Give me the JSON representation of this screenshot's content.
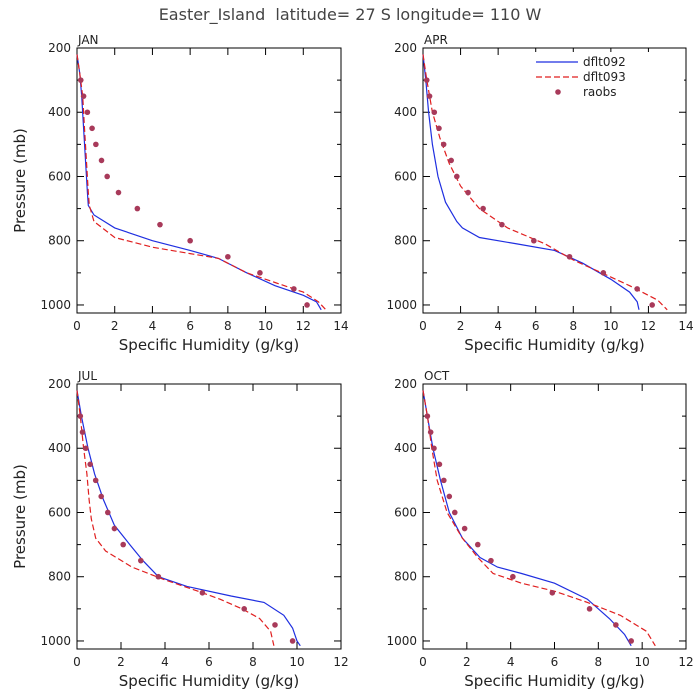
{
  "figure_title": "Easter_Island  latitude= 27 S longitude= 110 W",
  "legend": {
    "entries": [
      {
        "label": "dflt092",
        "color": "#1f2fe0",
        "style": "solid"
      },
      {
        "label": "dflt093",
        "color": "#e01f1f",
        "style": "dashed"
      },
      {
        "label": "raobs",
        "color": "#a83a5a",
        "style": "dot"
      }
    ]
  },
  "chart_data": [
    {
      "type": "line",
      "title": "JAN",
      "xlabel": "Specific Humidity (g/kg)",
      "ylabel": "Pressure (mb)",
      "xlim": [
        0,
        14
      ],
      "ylim": [
        200,
        1025
      ],
      "y_inverted": true,
      "xticks": [
        "0",
        "2",
        "4",
        "6",
        "8",
        "10",
        "12",
        "14"
      ],
      "yticks": [
        "200",
        "400",
        "600",
        "800",
        "1000"
      ],
      "series": [
        {
          "name": "dflt092",
          "points": [
            [
              0,
              220
            ],
            [
              0.15,
              280
            ],
            [
              0.25,
              350
            ],
            [
              0.35,
              450
            ],
            [
              0.45,
              550
            ],
            [
              0.55,
              650
            ],
            [
              0.6,
              690
            ],
            [
              0.9,
              720
            ],
            [
              2,
              760
            ],
            [
              4,
              800
            ],
            [
              6,
              830
            ],
            [
              7.5,
              855
            ],
            [
              9,
              900
            ],
            [
              10.5,
              940
            ],
            [
              12,
              970
            ],
            [
              12.7,
              990
            ],
            [
              12.95,
              1015
            ]
          ]
        },
        {
          "name": "dflt093",
          "points": [
            [
              0,
              220
            ],
            [
              0.15,
              280
            ],
            [
              0.3,
              350
            ],
            [
              0.4,
              450
            ],
            [
              0.5,
              550
            ],
            [
              0.6,
              650
            ],
            [
              0.65,
              690
            ],
            [
              0.9,
              740
            ],
            [
              2,
              790
            ],
            [
              4,
              820
            ],
            [
              6,
              840
            ],
            [
              7.5,
              855
            ],
            [
              9,
              900
            ],
            [
              10.5,
              930
            ],
            [
              12,
              960
            ],
            [
              12.8,
              990
            ],
            [
              13.2,
              1015
            ]
          ]
        },
        {
          "name": "raobs",
          "points": [
            [
              0.2,
              300
            ],
            [
              0.35,
              350
            ],
            [
              0.55,
              400
            ],
            [
              0.8,
              450
            ],
            [
              1.0,
              500
            ],
            [
              1.3,
              550
            ],
            [
              1.6,
              600
            ],
            [
              2.2,
              650
            ],
            [
              3.2,
              700
            ],
            [
              4.4,
              750
            ],
            [
              6,
              800
            ],
            [
              8,
              850
            ],
            [
              9.7,
              900
            ],
            [
              11.5,
              950
            ],
            [
              12.2,
              1000
            ]
          ]
        }
      ]
    },
    {
      "type": "line",
      "title": "APR",
      "xlabel": "Specific Humidity (g/kg)",
      "ylabel": "",
      "xlim": [
        0,
        14
      ],
      "ylim": [
        200,
        1025
      ],
      "y_inverted": true,
      "xticks": [
        "0",
        "2",
        "4",
        "6",
        "8",
        "10",
        "12",
        "14"
      ],
      "yticks": [
        "200",
        "400",
        "600",
        "800",
        "1000"
      ],
      "series": [
        {
          "name": "dflt092",
          "points": [
            [
              0,
              220
            ],
            [
              0.15,
              300
            ],
            [
              0.3,
              400
            ],
            [
              0.5,
              500
            ],
            [
              0.8,
              600
            ],
            [
              1.2,
              680
            ],
            [
              1.8,
              740
            ],
            [
              2.1,
              760
            ],
            [
              3,
              790
            ],
            [
              5,
              810
            ],
            [
              7,
              830
            ],
            [
              8.5,
              870
            ],
            [
              10,
              920
            ],
            [
              11,
              960
            ],
            [
              11.4,
              990
            ],
            [
              11.5,
              1015
            ]
          ]
        },
        {
          "name": "dflt093",
          "points": [
            [
              0,
              220
            ],
            [
              0.2,
              300
            ],
            [
              0.5,
              400
            ],
            [
              0.9,
              480
            ],
            [
              1.4,
              560
            ],
            [
              2,
              630
            ],
            [
              3,
              700
            ],
            [
              4.5,
              760
            ],
            [
              6.5,
              810
            ],
            [
              8,
              860
            ],
            [
              9.5,
              900
            ],
            [
              11,
              940
            ],
            [
              12.5,
              985
            ],
            [
              13,
              1015
            ]
          ]
        },
        {
          "name": "raobs",
          "points": [
            [
              0.2,
              300
            ],
            [
              0.35,
              350
            ],
            [
              0.6,
              400
            ],
            [
              0.85,
              450
            ],
            [
              1.1,
              500
            ],
            [
              1.5,
              550
            ],
            [
              1.8,
              600
            ],
            [
              2.4,
              650
            ],
            [
              3.2,
              700
            ],
            [
              4.2,
              750
            ],
            [
              5.9,
              800
            ],
            [
              7.8,
              850
            ],
            [
              9.6,
              900
            ],
            [
              11.4,
              950
            ],
            [
              12.2,
              1000
            ]
          ]
        }
      ]
    },
    {
      "type": "line",
      "title": "JUL",
      "xlabel": "Specific Humidity (g/kg)",
      "ylabel": "Pressure (mb)",
      "xlim": [
        0,
        12
      ],
      "ylim": [
        200,
        1025
      ],
      "y_inverted": true,
      "xticks": [
        "0",
        "2",
        "4",
        "6",
        "8",
        "10",
        "12"
      ],
      "yticks": [
        "200",
        "400",
        "600",
        "800",
        "1000"
      ],
      "series": [
        {
          "name": "dflt092",
          "points": [
            [
              0,
              220
            ],
            [
              0.2,
              300
            ],
            [
              0.5,
              400
            ],
            [
              0.8,
              480
            ],
            [
              1.2,
              560
            ],
            [
              1.7,
              640
            ],
            [
              2.4,
              700
            ],
            [
              3,
              750
            ],
            [
              3.7,
              800
            ],
            [
              5,
              830
            ],
            [
              7,
              860
            ],
            [
              8.5,
              880
            ],
            [
              9.4,
              920
            ],
            [
              9.8,
              960
            ],
            [
              10,
              1000
            ],
            [
              10.15,
              1015
            ]
          ]
        },
        {
          "name": "dflt093",
          "points": [
            [
              0,
              220
            ],
            [
              0.15,
              300
            ],
            [
              0.3,
              400
            ],
            [
              0.45,
              480
            ],
            [
              0.55,
              560
            ],
            [
              0.65,
              620
            ],
            [
              0.85,
              680
            ],
            [
              1.3,
              720
            ],
            [
              2.5,
              770
            ],
            [
              4,
              810
            ],
            [
              5.5,
              845
            ],
            [
              6.5,
              870
            ],
            [
              7.5,
              900
            ],
            [
              8.3,
              930
            ],
            [
              8.8,
              970
            ],
            [
              8.95,
              1015
            ]
          ]
        },
        {
          "name": "raobs",
          "points": [
            [
              0.15,
              300
            ],
            [
              0.25,
              350
            ],
            [
              0.4,
              400
            ],
            [
              0.6,
              450
            ],
            [
              0.85,
              500
            ],
            [
              1.1,
              550
            ],
            [
              1.4,
              600
            ],
            [
              1.7,
              650
            ],
            [
              2.1,
              700
            ],
            [
              2.9,
              750
            ],
            [
              3.7,
              800
            ],
            [
              5.7,
              850
            ],
            [
              7.6,
              900
            ],
            [
              9,
              950
            ],
            [
              9.8,
              1000
            ]
          ]
        }
      ]
    },
    {
      "type": "line",
      "title": "OCT",
      "xlabel": "Specific Humidity (g/kg)",
      "ylabel": "",
      "xlim": [
        0,
        12
      ],
      "ylim": [
        200,
        1025
      ],
      "y_inverted": true,
      "xticks": [
        "0",
        "2",
        "4",
        "6",
        "8",
        "10",
        "12"
      ],
      "yticks": [
        "200",
        "400",
        "600",
        "800",
        "1000"
      ],
      "series": [
        {
          "name": "dflt092",
          "points": [
            [
              0,
              220
            ],
            [
              0.2,
              300
            ],
            [
              0.45,
              400
            ],
            [
              0.8,
              500
            ],
            [
              1.2,
              600
            ],
            [
              1.8,
              680
            ],
            [
              2.6,
              740
            ],
            [
              3.4,
              770
            ],
            [
              4.5,
              790
            ],
            [
              6,
              820
            ],
            [
              7.5,
              870
            ],
            [
              8.5,
              930
            ],
            [
              9.2,
              980
            ],
            [
              9.5,
              1015
            ]
          ]
        },
        {
          "name": "dflt093",
          "points": [
            [
              0,
              220
            ],
            [
              0.2,
              300
            ],
            [
              0.4,
              400
            ],
            [
              0.65,
              500
            ],
            [
              1.1,
              600
            ],
            [
              1.8,
              680
            ],
            [
              2.5,
              740
            ],
            [
              3.2,
              790
            ],
            [
              4.5,
              820
            ],
            [
              6,
              845
            ],
            [
              7.5,
              880
            ],
            [
              9,
              920
            ],
            [
              10.2,
              970
            ],
            [
              10.6,
              1015
            ]
          ]
        },
        {
          "name": "raobs",
          "points": [
            [
              0.2,
              300
            ],
            [
              0.35,
              350
            ],
            [
              0.5,
              400
            ],
            [
              0.75,
              450
            ],
            [
              0.95,
              500
            ],
            [
              1.2,
              550
            ],
            [
              1.45,
              600
            ],
            [
              1.9,
              650
            ],
            [
              2.5,
              700
            ],
            [
              3.1,
              750
            ],
            [
              4.1,
              800
            ],
            [
              5.9,
              850
            ],
            [
              7.6,
              900
            ],
            [
              8.8,
              950
            ],
            [
              9.5,
              1000
            ]
          ]
        }
      ]
    }
  ]
}
